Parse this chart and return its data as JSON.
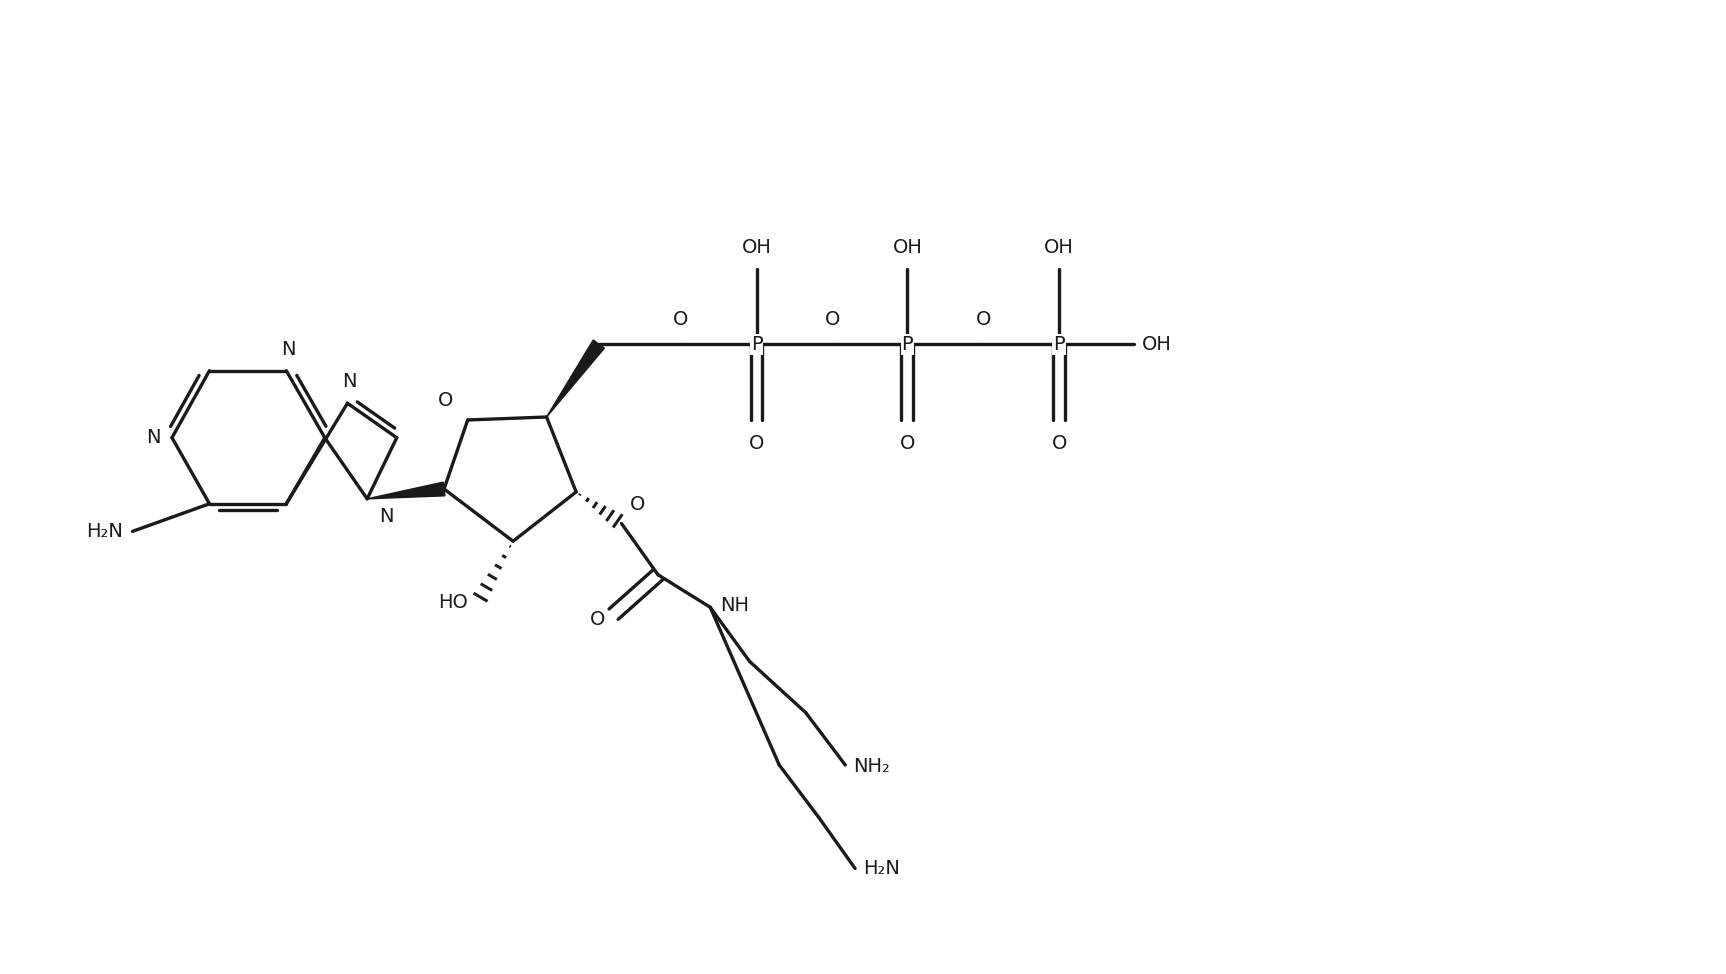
{
  "bg_color": "#ffffff",
  "line_color": "#1a1a1a",
  "line_width": 2.4,
  "font_size": 14,
  "font_family": "Arial",
  "figsize": [
    17.26,
    9.74
  ],
  "dpi": 100,
  "xlim": [
    0,
    17.26
  ],
  "ylim": [
    0,
    9.74
  ]
}
